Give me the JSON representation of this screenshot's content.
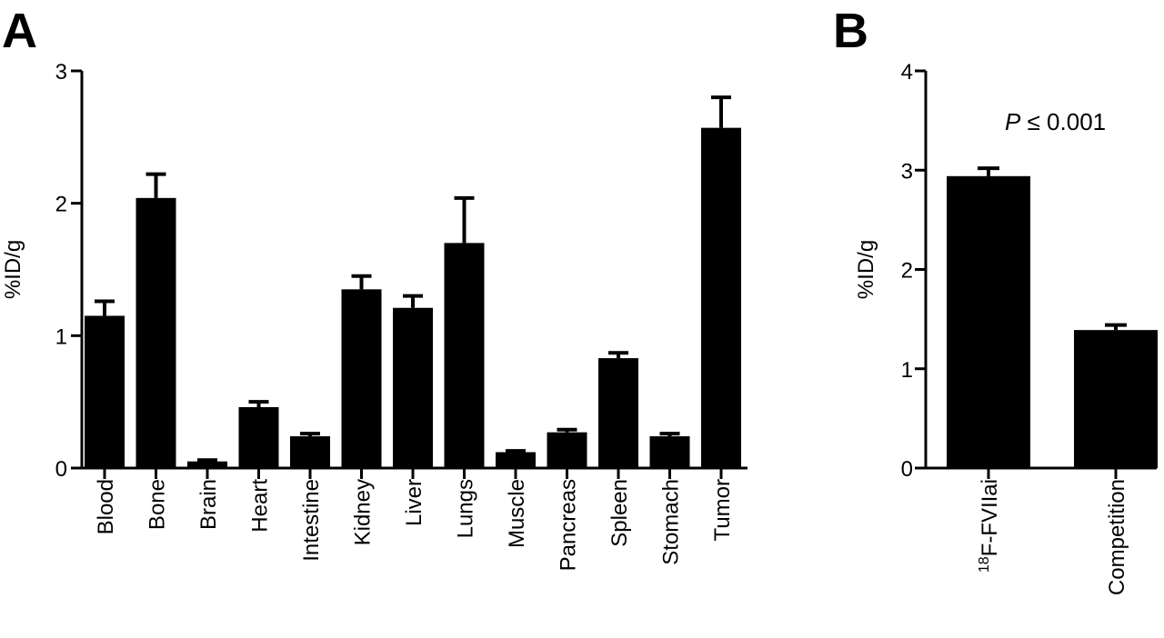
{
  "panel_labels": {
    "a": "A",
    "b": "B"
  },
  "colors": {
    "bar": "#000000",
    "axis": "#000000",
    "background": "#ffffff"
  },
  "chart_data": [
    {
      "id": "A",
      "type": "bar",
      "ylabel": "%ID/g",
      "xlabel": "",
      "ylim": [
        0,
        3
      ],
      "yticks": [
        0,
        1,
        2,
        3
      ],
      "grid": false,
      "error_bars": "one-sided (upper)",
      "categories": [
        "Blood",
        "Bone",
        "Brain",
        "Heart",
        "Intestine",
        "Kidney",
        "Liver",
        "Lungs",
        "Muscle",
        "Pancreas",
        "Spleen",
        "Stomach",
        "Tumor"
      ],
      "values": [
        1.15,
        2.04,
        0.05,
        0.46,
        0.24,
        1.35,
        1.21,
        1.7,
        0.12,
        0.27,
        0.83,
        0.24,
        2.57
      ],
      "errors": [
        0.11,
        0.18,
        0.01,
        0.04,
        0.02,
        0.1,
        0.09,
        0.34,
        0.01,
        0.02,
        0.04,
        0.02,
        0.23
      ]
    },
    {
      "id": "B",
      "type": "bar",
      "ylabel": "%ID/g",
      "xlabel": "",
      "ylim": [
        0,
        4
      ],
      "yticks": [
        0,
        1,
        2,
        3,
        4
      ],
      "grid": false,
      "error_bars": "one-sided (upper)",
      "categories": [
        {
          "sup": "18",
          "text": "F-FVIIai"
        },
        {
          "sup": "",
          "text": "Competition"
        }
      ],
      "values": [
        2.94,
        1.39
      ],
      "errors": [
        0.08,
        0.05
      ],
      "annotation": {
        "italic": "P",
        "text": " ≤ 0.001"
      }
    }
  ]
}
